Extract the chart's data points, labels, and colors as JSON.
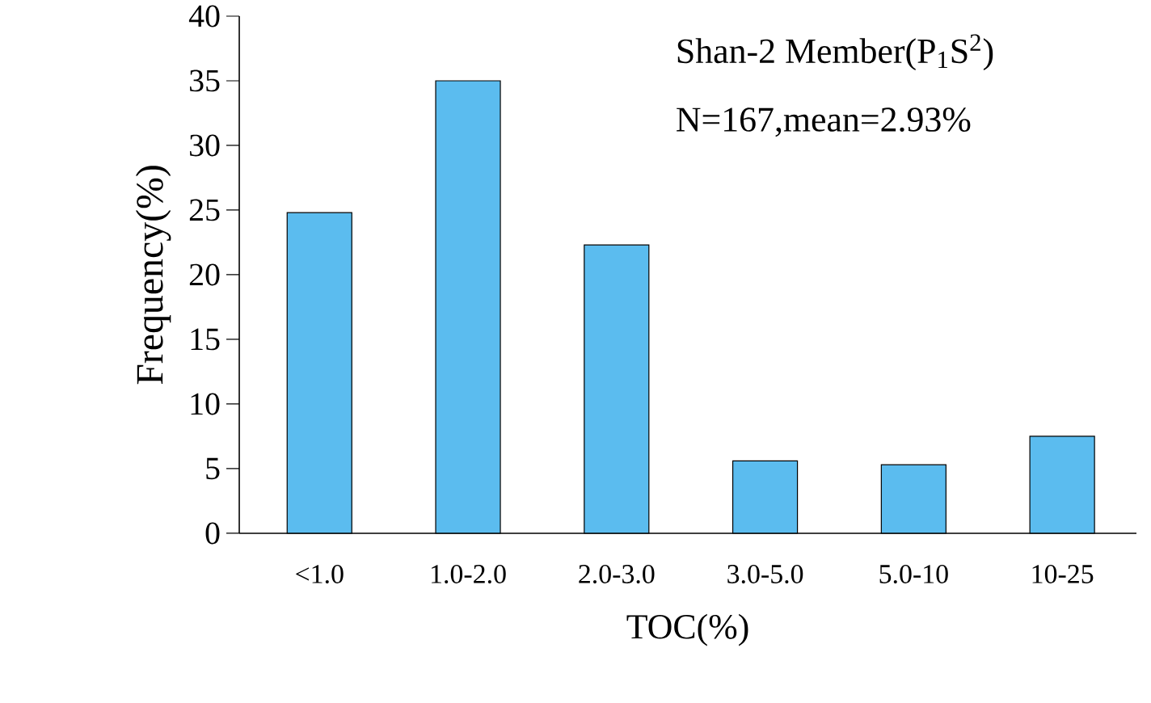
{
  "chart_data": {
    "type": "bar",
    "xlabel": "TOC(%)",
    "ylabel": "Frequency(%)",
    "categories": [
      "<1.0",
      "1.0-2.0",
      "2.0-3.0",
      "3.0-5.0",
      "5.0-10",
      "10-25"
    ],
    "values": [
      24.8,
      35,
      22.3,
      5.6,
      5.3,
      7.5
    ],
    "color": "#5bbcef",
    "ylim": [
      0,
      40
    ],
    "yticks": [
      0,
      5,
      10,
      15,
      20,
      25,
      30,
      35,
      40
    ],
    "grid": false,
    "annotations": [
      "Shan-2 Member(P$_{1}$S$^{2}$)",
      "N=167,mean=2.93%"
    ]
  }
}
